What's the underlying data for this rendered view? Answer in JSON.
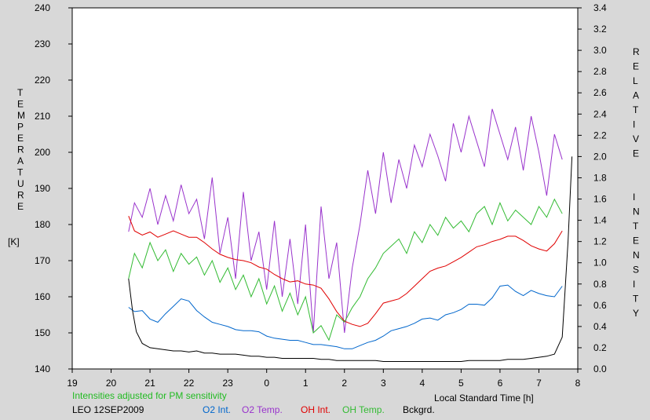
{
  "chart_data": {
    "type": "line",
    "left_axis_label": "TEMPERATURE",
    "left_axis_unit": "[K]",
    "right_axis_label": "RELATIVE INTENSITY",
    "xlabel": "Local Standard Time [h]",
    "note": "Intensities adjusted for PM sensitivity",
    "station": "LEO 12SEP2009",
    "x_ticks": [
      "19",
      "20",
      "21",
      "22",
      "23",
      "0",
      "1",
      "2",
      "3",
      "4",
      "5",
      "6",
      "7",
      "8"
    ],
    "y_left_ticks": [
      140,
      150,
      160,
      170,
      180,
      190,
      200,
      210,
      220,
      230,
      240
    ],
    "y_right_ticks": [
      "0.0",
      "0.2",
      "0.4",
      "0.6",
      "0.8",
      "1.0",
      "1.2",
      "1.4",
      "1.6",
      "1.8",
      "2.0",
      "2.2",
      "2.4",
      "2.6",
      "2.8",
      "3.0",
      "3.2",
      "3.4"
    ],
    "xlim": [
      19,
      32
    ],
    "ylim_left": [
      140,
      240
    ],
    "ylim_right": [
      0,
      3.4
    ],
    "grid": false,
    "series": [
      {
        "name": "O2 Int.",
        "axis": "right",
        "color": "#0066cc",
        "x": [
          20.45,
          20.6,
          20.8,
          21.0,
          21.2,
          21.4,
          21.6,
          21.8,
          22.0,
          22.2,
          22.4,
          22.6,
          22.8,
          23.0,
          23.2,
          23.4,
          23.6,
          23.8,
          24.0,
          24.2,
          24.4,
          24.6,
          24.8,
          25.0,
          25.2,
          25.4,
          25.6,
          25.8,
          26.0,
          26.2,
          26.4,
          26.6,
          26.8,
          27.0,
          27.2,
          27.4,
          27.6,
          27.8,
          28.0,
          28.2,
          28.4,
          28.6,
          28.8,
          29.0,
          29.2,
          29.4,
          29.6,
          29.8,
          30.0,
          30.2,
          30.4,
          30.6,
          30.8,
          31.0,
          31.2,
          31.4,
          31.6
        ],
        "y": [
          0.58,
          0.54,
          0.55,
          0.47,
          0.44,
          0.52,
          0.59,
          0.66,
          0.64,
          0.55,
          0.49,
          0.44,
          0.42,
          0.4,
          0.37,
          0.36,
          0.36,
          0.35,
          0.31,
          0.29,
          0.28,
          0.27,
          0.27,
          0.25,
          0.23,
          0.23,
          0.22,
          0.21,
          0.19,
          0.19,
          0.22,
          0.25,
          0.27,
          0.31,
          0.36,
          0.38,
          0.4,
          0.43,
          0.47,
          0.48,
          0.46,
          0.51,
          0.53,
          0.56,
          0.61,
          0.61,
          0.6,
          0.67,
          0.78,
          0.79,
          0.73,
          0.69,
          0.74,
          0.71,
          0.69,
          0.68,
          0.78
        ]
      },
      {
        "name": "O2 Temp.",
        "axis": "left",
        "color": "#9933cc",
        "x": [
          20.45,
          20.6,
          20.8,
          21.0,
          21.2,
          21.4,
          21.6,
          21.8,
          22.0,
          22.2,
          22.4,
          22.6,
          22.8,
          23.0,
          23.2,
          23.4,
          23.6,
          23.8,
          24.0,
          24.2,
          24.4,
          24.6,
          24.8,
          25.0,
          25.2,
          25.4,
          25.6,
          25.8,
          26.0,
          26.2,
          26.4,
          26.6,
          26.8,
          27.0,
          27.2,
          27.4,
          27.6,
          27.8,
          28.0,
          28.2,
          28.4,
          28.6,
          28.8,
          29.0,
          29.2,
          29.4,
          29.6,
          29.8,
          30.0,
          30.2,
          30.4,
          30.6,
          30.8,
          31.0,
          31.2,
          31.4,
          31.6
        ],
        "y": [
          178,
          186,
          182,
          190,
          180,
          188,
          181,
          191,
          183,
          187,
          176,
          193,
          172,
          182,
          165,
          189,
          170,
          178,
          162,
          181,
          160,
          176,
          158,
          180,
          150,
          185,
          165,
          175,
          150,
          168,
          180,
          195,
          183,
          200,
          186,
          198,
          190,
          202,
          196,
          205,
          199,
          192,
          208,
          200,
          210,
          203,
          196,
          212,
          205,
          198,
          207,
          195,
          210,
          200,
          188,
          205,
          198
        ]
      },
      {
        "name": "OH Int.",
        "axis": "right",
        "color": "#e00000",
        "x": [
          20.45,
          20.6,
          20.8,
          21.0,
          21.2,
          21.4,
          21.6,
          21.8,
          22.0,
          22.2,
          22.4,
          22.6,
          22.8,
          23.0,
          23.2,
          23.4,
          23.6,
          23.8,
          24.0,
          24.2,
          24.4,
          24.6,
          24.8,
          25.0,
          25.2,
          25.4,
          25.6,
          25.8,
          26.0,
          26.2,
          26.4,
          26.6,
          26.8,
          27.0,
          27.2,
          27.4,
          27.6,
          27.8,
          28.0,
          28.2,
          28.4,
          28.6,
          28.8,
          29.0,
          29.2,
          29.4,
          29.6,
          29.8,
          30.0,
          30.2,
          30.4,
          30.6,
          30.8,
          31.0,
          31.2,
          31.4,
          31.6
        ],
        "y": [
          1.44,
          1.3,
          1.26,
          1.29,
          1.24,
          1.27,
          1.3,
          1.27,
          1.24,
          1.24,
          1.19,
          1.13,
          1.08,
          1.05,
          1.03,
          1.02,
          1.0,
          0.96,
          0.94,
          0.89,
          0.85,
          0.82,
          0.83,
          0.8,
          0.79,
          0.76,
          0.66,
          0.54,
          0.45,
          0.42,
          0.4,
          0.43,
          0.52,
          0.62,
          0.64,
          0.66,
          0.71,
          0.78,
          0.85,
          0.92,
          0.95,
          0.97,
          1.01,
          1.05,
          1.1,
          1.15,
          1.17,
          1.2,
          1.22,
          1.25,
          1.25,
          1.21,
          1.16,
          1.13,
          1.11,
          1.18,
          1.3
        ]
      },
      {
        "name": "OH Temp.",
        "axis": "left",
        "color": "#33bb33",
        "x": [
          20.45,
          20.6,
          20.8,
          21.0,
          21.2,
          21.4,
          21.6,
          21.8,
          22.0,
          22.2,
          22.4,
          22.6,
          22.8,
          23.0,
          23.2,
          23.4,
          23.6,
          23.8,
          24.0,
          24.2,
          24.4,
          24.6,
          24.8,
          25.0,
          25.2,
          25.4,
          25.6,
          25.8,
          26.0,
          26.2,
          26.4,
          26.6,
          26.8,
          27.0,
          27.2,
          27.4,
          27.6,
          27.8,
          28.0,
          28.2,
          28.4,
          28.6,
          28.8,
          29.0,
          29.2,
          29.4,
          29.6,
          29.8,
          30.0,
          30.2,
          30.4,
          30.6,
          30.8,
          31.0,
          31.2,
          31.4,
          31.6
        ],
        "y": [
          165,
          172,
          168,
          175,
          170,
          173,
          167,
          172,
          169,
          171,
          166,
          170,
          164,
          168,
          162,
          166,
          160,
          165,
          158,
          163,
          156,
          161,
          155,
          160,
          150,
          152,
          148,
          155,
          153,
          157,
          160,
          165,
          168,
          172,
          174,
          176,
          172,
          178,
          175,
          180,
          177,
          182,
          179,
          181,
          178,
          183,
          185,
          180,
          186,
          181,
          184,
          182,
          180,
          185,
          182,
          187,
          183
        ]
      },
      {
        "name": "Bckgrd.",
        "axis": "right",
        "color": "#000000",
        "x": [
          20.45,
          20.55,
          20.65,
          20.8,
          21.0,
          21.2,
          21.4,
          21.6,
          21.8,
          22.0,
          22.2,
          22.4,
          22.6,
          22.8,
          23.0,
          23.2,
          23.4,
          23.6,
          23.8,
          24.0,
          24.2,
          24.4,
          24.6,
          24.8,
          25.0,
          25.2,
          25.4,
          25.6,
          25.8,
          26.0,
          26.2,
          26.4,
          26.6,
          26.8,
          27.0,
          27.2,
          27.4,
          27.6,
          27.8,
          28.0,
          28.2,
          28.4,
          28.6,
          28.8,
          29.0,
          29.2,
          29.4,
          29.6,
          29.8,
          30.0,
          30.2,
          30.4,
          30.6,
          30.8,
          31.0,
          31.2,
          31.4,
          31.6,
          31.75,
          31.85
        ],
        "y": [
          0.85,
          0.55,
          0.35,
          0.24,
          0.2,
          0.19,
          0.18,
          0.17,
          0.17,
          0.16,
          0.17,
          0.15,
          0.15,
          0.14,
          0.14,
          0.14,
          0.13,
          0.12,
          0.12,
          0.11,
          0.11,
          0.1,
          0.1,
          0.1,
          0.1,
          0.1,
          0.09,
          0.09,
          0.08,
          0.08,
          0.08,
          0.08,
          0.08,
          0.08,
          0.07,
          0.07,
          0.07,
          0.07,
          0.07,
          0.07,
          0.07,
          0.07,
          0.07,
          0.07,
          0.07,
          0.08,
          0.08,
          0.08,
          0.08,
          0.08,
          0.09,
          0.09,
          0.09,
          0.1,
          0.11,
          0.12,
          0.14,
          0.3,
          1.2,
          2.0
        ]
      }
    ]
  }
}
